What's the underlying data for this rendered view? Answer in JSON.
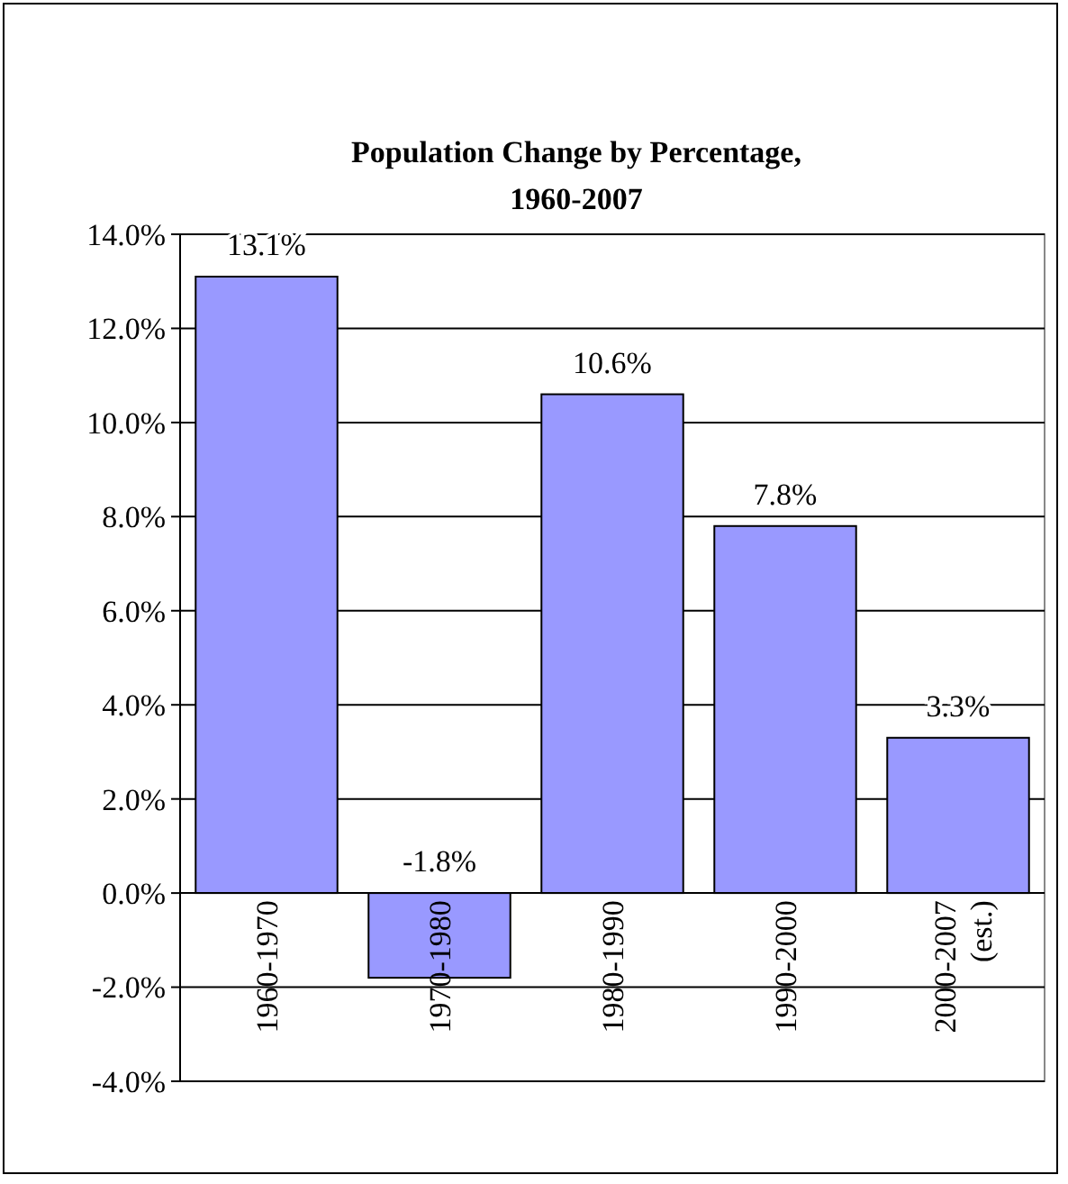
{
  "chart_data": {
    "type": "bar",
    "title": "Population Change by Percentage, 1960-2007",
    "categories": [
      "1960-1970",
      "1970-1980",
      "1980-1990",
      "1990-2000",
      "2000-2007 (est.)"
    ],
    "values": [
      13.1,
      -1.8,
      10.6,
      7.8,
      3.3
    ],
    "value_labels": [
      "13.1%",
      "-1.8%",
      "10.6%",
      "7.8%",
      "3.3%"
    ],
    "color": "#9999ff",
    "ylim": [
      -4,
      14
    ],
    "yticks": [
      {
        "value": -4,
        "label": "-4.0%"
      },
      {
        "value": -2,
        "label": "-2.0%"
      },
      {
        "value": 0,
        "label": "0.0%"
      },
      {
        "value": 2,
        "label": "2.0%"
      },
      {
        "value": 4,
        "label": "4.0%"
      },
      {
        "value": 6,
        "label": "6.0%"
      },
      {
        "value": 8,
        "label": "8.0%"
      },
      {
        "value": 10,
        "label": "10.0%"
      },
      {
        "value": 12,
        "label": "12.0%"
      },
      {
        "value": 14,
        "label": "14.0%"
      }
    ],
    "grid": "y"
  }
}
